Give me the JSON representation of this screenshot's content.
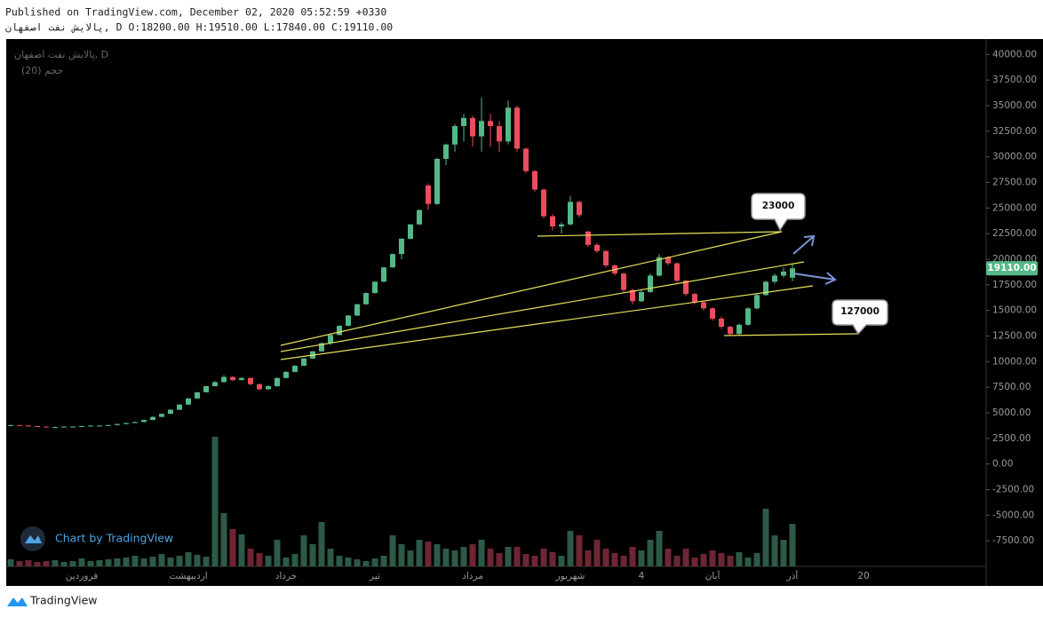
{
  "header": {
    "published": "Published on TradingView.com, December 02, 2020 05:52:59 +0330",
    "symbol_line": "پالایش نفت اصفهان, D O:18200.00 H:19510.00 L:17840.00 C:19110.00"
  },
  "chart_data": {
    "type": "candlestick",
    "legend": [
      "پالایش نفت اصفهان, D",
      "حجم (20)"
    ],
    "up_color": "#53b987",
    "down_color": "#eb4d5c",
    "volume_up_color": "#2c5a46",
    "volume_down_color": "#6e2633",
    "categories": [
      null,
      null,
      null,
      null,
      null,
      null,
      null,
      null,
      "فروردین",
      null,
      null,
      null,
      null,
      null,
      null,
      null,
      null,
      null,
      null,
      null,
      "اردیبهشت",
      null,
      null,
      null,
      null,
      null,
      null,
      null,
      null,
      null,
      null,
      "خرداد",
      null,
      null,
      null,
      null,
      null,
      null,
      null,
      null,
      null,
      "تیر",
      null,
      null,
      null,
      null,
      null,
      null,
      null,
      null,
      null,
      null,
      "مرداد",
      null,
      null,
      null,
      null,
      null,
      null,
      null,
      null,
      null,
      null,
      "شهریور",
      null,
      null,
      null,
      null,
      null,
      null,
      null,
      "4",
      null,
      null,
      null,
      null,
      null,
      null,
      null,
      "آبان",
      null,
      null,
      null,
      null,
      null,
      null,
      null,
      null,
      "آذر",
      null,
      null,
      null,
      null,
      null,
      null,
      null,
      "20"
    ],
    "ohlc": [
      [
        3750,
        3850,
        3700,
        3800
      ],
      [
        3800,
        3820,
        3720,
        3750
      ],
      [
        3750,
        3780,
        3680,
        3700
      ],
      [
        3700,
        3720,
        3620,
        3650
      ],
      [
        3650,
        3680,
        3570,
        3600
      ],
      [
        3600,
        3650,
        3560,
        3600
      ],
      [
        3600,
        3700,
        3580,
        3650
      ],
      [
        3650,
        3690,
        3600,
        3650
      ],
      [
        3650,
        3740,
        3620,
        3700
      ],
      [
        3700,
        3790,
        3680,
        3750
      ],
      [
        3750,
        3800,
        3700,
        3750
      ],
      [
        3750,
        3850,
        3720,
        3800
      ],
      [
        3800,
        3950,
        3780,
        3900
      ],
      [
        3900,
        4050,
        3880,
        4000
      ],
      [
        4000,
        4150,
        3980,
        4100
      ],
      [
        4100,
        4350,
        4080,
        4300
      ],
      [
        4300,
        4650,
        4280,
        4600
      ],
      [
        4600,
        4950,
        4580,
        4900
      ],
      [
        4900,
        5350,
        4880,
        5300
      ],
      [
        5300,
        5850,
        5280,
        5800
      ],
      [
        5800,
        6450,
        5780,
        6400
      ],
      [
        6400,
        7050,
        6380,
        7000
      ],
      [
        7000,
        7650,
        6980,
        7600
      ],
      [
        7600,
        8100,
        7580,
        8000
      ],
      [
        8000,
        8700,
        7950,
        8500
      ],
      [
        8500,
        8600,
        8100,
        8200
      ],
      [
        8200,
        8500,
        8150,
        8400
      ],
      [
        8400,
        8450,
        7700,
        7800
      ],
      [
        7800,
        7850,
        7200,
        7300
      ],
      [
        7300,
        7700,
        7250,
        7600
      ],
      [
        7600,
        8450,
        7550,
        8400
      ],
      [
        8400,
        9050,
        8350,
        9000
      ],
      [
        9000,
        9650,
        8950,
        9600
      ],
      [
        9600,
        10350,
        9550,
        10300
      ],
      [
        10300,
        11050,
        10250,
        11000
      ],
      [
        11000,
        11850,
        10950,
        11800
      ],
      [
        11800,
        12650,
        11600,
        12600
      ],
      [
        12600,
        13550,
        12550,
        13500
      ],
      [
        13500,
        14550,
        13450,
        14500
      ],
      [
        14500,
        15650,
        14450,
        15600
      ],
      [
        15600,
        16750,
        15550,
        16700
      ],
      [
        16700,
        17850,
        16650,
        17800
      ],
      [
        17800,
        19250,
        17750,
        19200
      ],
      [
        19200,
        20550,
        19150,
        20500
      ],
      [
        20500,
        22050,
        20000,
        22000
      ],
      [
        22000,
        23450,
        21950,
        23400
      ],
      [
        23400,
        24850,
        23350,
        24800
      ],
      [
        27200,
        27400,
        24800,
        25400
      ],
      [
        25400,
        29900,
        25300,
        29800
      ],
      [
        29800,
        31300,
        29200,
        31200
      ],
      [
        31200,
        33200,
        30500,
        33000
      ],
      [
        33000,
        34200,
        31500,
        33800
      ],
      [
        33800,
        34000,
        31000,
        32000
      ],
      [
        32000,
        35800,
        30500,
        33500
      ],
      [
        33500,
        34200,
        31000,
        33000
      ],
      [
        33000,
        33500,
        30500,
        31500
      ],
      [
        31500,
        35500,
        31200,
        34800
      ],
      [
        34800,
        35000,
        30500,
        30800
      ],
      [
        30800,
        30900,
        28400,
        28600
      ],
      [
        28600,
        28700,
        26600,
        26800
      ],
      [
        26800,
        26900,
        24000,
        24200
      ],
      [
        24200,
        24400,
        22800,
        23200
      ],
      [
        23200,
        23600,
        22500,
        23400
      ],
      [
        23400,
        26200,
        23300,
        25600
      ],
      [
        25600,
        25700,
        24100,
        24300
      ],
      [
        22700,
        22800,
        21200,
        21400
      ],
      [
        21400,
        21600,
        20600,
        20800
      ],
      [
        20800,
        20900,
        19200,
        19400
      ],
      [
        19400,
        19500,
        18400,
        18600
      ],
      [
        18600,
        18700,
        16800,
        17000
      ],
      [
        17000,
        17100,
        15600,
        15900
      ],
      [
        15900,
        17000,
        15800,
        16800
      ],
      [
        16800,
        18600,
        16700,
        18400
      ],
      [
        18400,
        20500,
        18300,
        20200
      ],
      [
        20200,
        20300,
        19400,
        19600
      ],
      [
        19600,
        19700,
        17700,
        17900
      ],
      [
        17900,
        18000,
        16400,
        16600
      ],
      [
        16600,
        16700,
        15600,
        15800
      ],
      [
        15800,
        15900,
        15000,
        15200
      ],
      [
        15200,
        15300,
        14000,
        14200
      ],
      [
        14200,
        14400,
        13200,
        13400
      ],
      [
        13400,
        13500,
        12500,
        12700
      ],
      [
        12700,
        13700,
        12600,
        13600
      ],
      [
        13600,
        15300,
        13500,
        15200
      ],
      [
        15200,
        16600,
        15100,
        16500
      ],
      [
        16500,
        17900,
        16400,
        17800
      ],
      [
        17800,
        18600,
        17600,
        18400
      ],
      [
        18400,
        19200,
        18200,
        18800
      ],
      [
        18200,
        19510,
        17840,
        19110
      ],
      null,
      null,
      null,
      null,
      null,
      null,
      null,
      null
    ],
    "volume": [
      8,
      6,
      7,
      5,
      6,
      7,
      5,
      6,
      9,
      6,
      7,
      8,
      9,
      10,
      12,
      9,
      11,
      14,
      10,
      12,
      16,
      13,
      11,
      146,
      60,
      42,
      36,
      20,
      15,
      12,
      30,
      10,
      14,
      35,
      25,
      50,
      20,
      12,
      10,
      8,
      6,
      9,
      12,
      35,
      25,
      18,
      30,
      28,
      25,
      20,
      18,
      22,
      25,
      30,
      20,
      15,
      22,
      22,
      14,
      12,
      20,
      16,
      12,
      40,
      35,
      18,
      30,
      20,
      15,
      12,
      22,
      18,
      30,
      40,
      20,
      12,
      20,
      10,
      14,
      18,
      15,
      12,
      16,
      10,
      15,
      65,
      35,
      30,
      48,
      null,
      null,
      null,
      null,
      null,
      null,
      null,
      null
    ],
    "ylim": [
      -10000,
      41500
    ],
    "yticks": [
      {
        "value": 40000,
        "label": "40000.00"
      },
      {
        "value": 37500,
        "label": "37500.00"
      },
      {
        "value": 35000,
        "label": "35000.00"
      },
      {
        "value": 32500,
        "label": "32500.00"
      },
      {
        "value": 30000,
        "label": "30000.00"
      },
      {
        "value": 27500,
        "label": "27500.00"
      },
      {
        "value": 25000,
        "label": "25000.00"
      },
      {
        "value": 22500,
        "label": "22500.00"
      },
      {
        "value": 20000,
        "label": "20000.00"
      },
      {
        "value": 17500,
        "label": "17500.00"
      },
      {
        "value": 15000,
        "label": "15000.00"
      },
      {
        "value": 12500,
        "label": "12500.00"
      },
      {
        "value": 10000,
        "label": "10000.00"
      },
      {
        "value": 7500,
        "label": "7500.00"
      },
      {
        "value": 5000,
        "label": "5000.00"
      },
      {
        "value": 2500,
        "label": "2500.00"
      },
      {
        "value": 0,
        "label": "0.00"
      },
      {
        "value": -2500,
        "label": "-2500.00"
      },
      {
        "value": -5000,
        "label": "-5000.00"
      },
      {
        "value": -7500,
        "label": "-7500.00"
      }
    ],
    "last_price": {
      "value": 19110,
      "label": "19110.00"
    },
    "annotations": [
      "23000",
      "127000"
    ]
  },
  "watermark": "Chart by TradingView",
  "footer": "TradingView"
}
